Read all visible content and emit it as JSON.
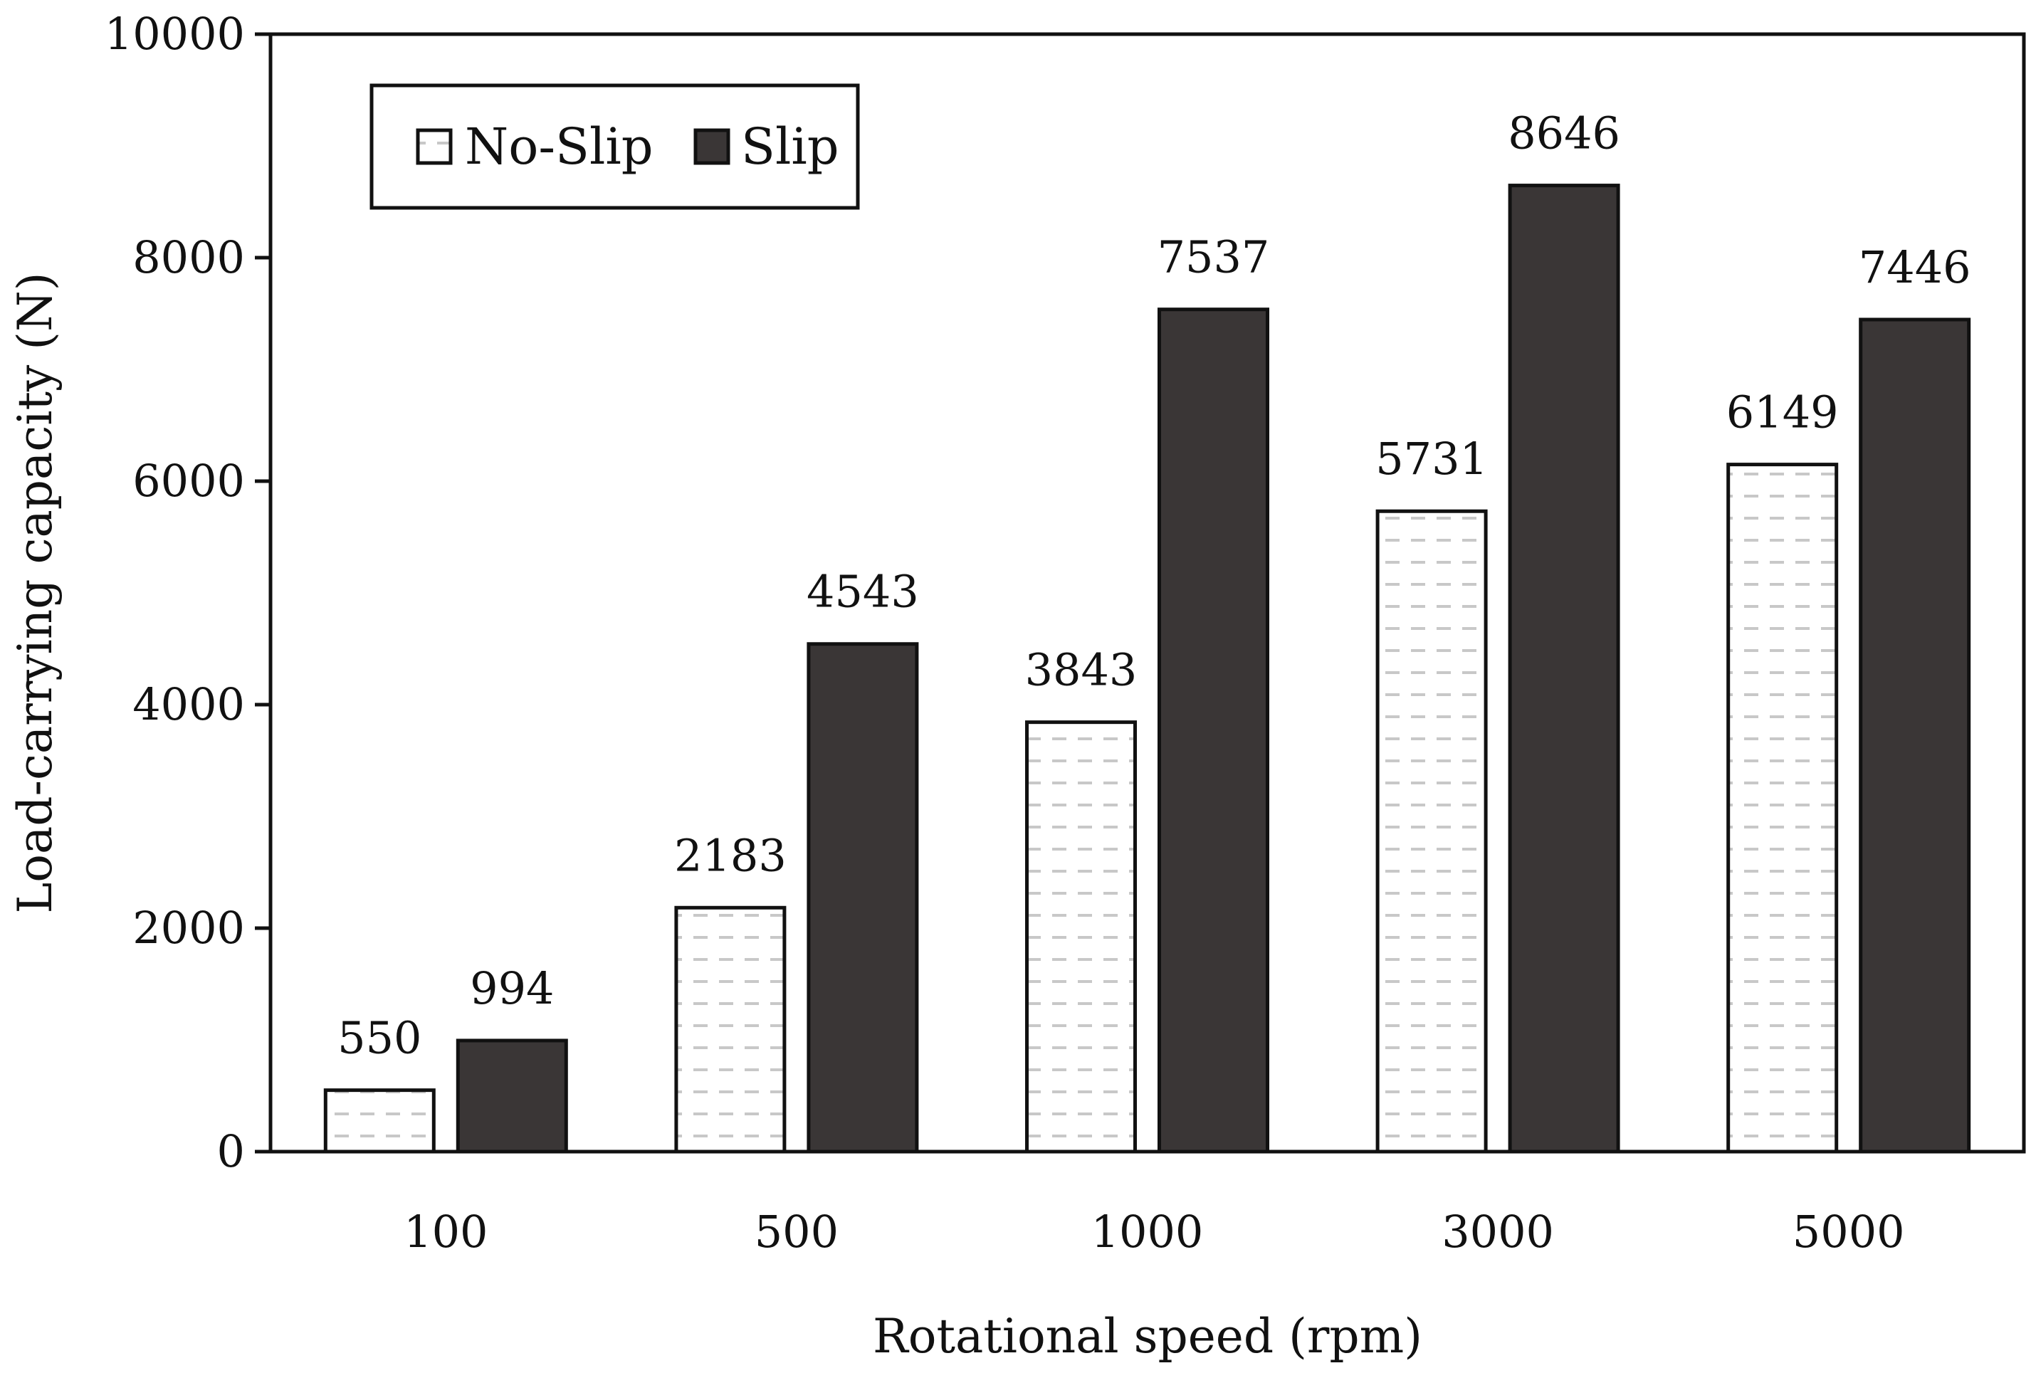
{
  "chart_data": {
    "type": "bar",
    "title": "",
    "xlabel": "Rotational speed (rpm)",
    "ylabel": "Load-carrying capacity (N)",
    "categories": [
      "100",
      "500",
      "1000",
      "3000",
      "5000"
    ],
    "series": [
      {
        "name": "No-Slip",
        "values": [
          550,
          2183,
          3843,
          5731,
          6149
        ],
        "data_labels": [
          "550",
          "2183",
          "3843",
          "5731",
          "6149"
        ],
        "pattern": "dashed-hatch",
        "fill": "#ffffff"
      },
      {
        "name": "Slip",
        "values": [
          994,
          4543,
          7537,
          8646,
          7446
        ],
        "data_labels": [
          "994",
          "4543",
          "7537",
          "8646",
          "7446"
        ],
        "pattern": "solid",
        "fill": "#3a3636"
      }
    ],
    "ylim": [
      0,
      10000
    ],
    "yticks": [
      "0",
      "2000",
      "4000",
      "6000",
      "8000",
      "10000"
    ],
    "grid": false,
    "legend_position": "top-left"
  },
  "colors": {
    "slip_fill": "#3a3636",
    "noslip_fill": "#ffffff",
    "hatch": "#c8c8c8",
    "axis": "#111111"
  }
}
